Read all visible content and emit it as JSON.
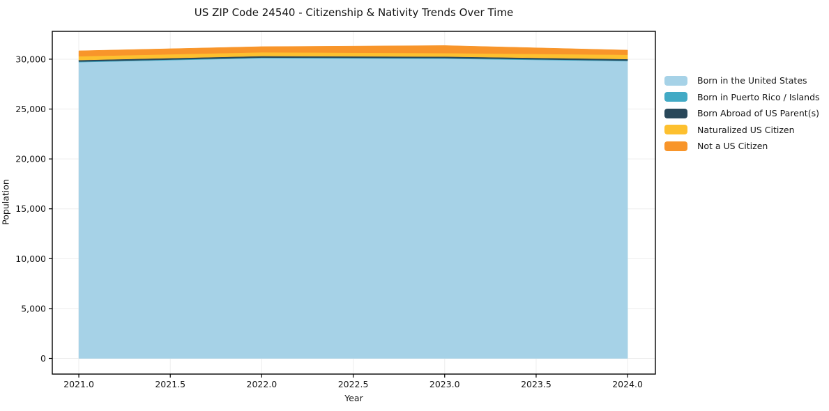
{
  "title": "US ZIP Code 24540 - Citizenship & Nativity Trends Over Time",
  "chart_data": {
    "type": "area",
    "stacked": true,
    "title": "US ZIP Code 24540 - Citizenship & Nativity Trends Over Time",
    "xlabel": "Year",
    "ylabel": "Population",
    "x": [
      2021,
      2022,
      2023,
      2024
    ],
    "series": [
      {
        "name": "Born in the United States",
        "color": "#a6d2e7",
        "values": [
          29700,
          30100,
          30050,
          29800
        ]
      },
      {
        "name": "Born in Puerto Rico / Islands",
        "color": "#42aac5",
        "values": [
          60,
          60,
          60,
          60
        ]
      },
      {
        "name": "Born Abroad of US Parent(s)",
        "color": "#29485a",
        "values": [
          150,
          150,
          150,
          150
        ]
      },
      {
        "name": "Naturalized US Citizen",
        "color": "#fdc02f",
        "values": [
          380,
          380,
          350,
          430
        ]
      },
      {
        "name": "Not a US Citizen",
        "color": "#f8952a",
        "values": [
          550,
          570,
          760,
          470
        ]
      }
    ],
    "totals": [
      30840,
      31260,
      31360,
      30910
    ],
    "xlim": [
      2020.855,
      2024.152
    ],
    "ylim": [
      -1570,
      32790
    ],
    "xticks": {
      "values": [
        2021.0,
        2021.5,
        2022.0,
        2022.5,
        2023.0,
        2023.5,
        2024.0
      ],
      "labels": [
        "2021.0",
        "2021.5",
        "2022.0",
        "2022.5",
        "2023.0",
        "2023.5",
        "2024.0"
      ]
    },
    "yticks": {
      "values": [
        0,
        5000,
        10000,
        15000,
        20000,
        25000,
        30000
      ],
      "labels": [
        "0",
        "5,000",
        "10,000",
        "15,000",
        "20,000",
        "25,000",
        "30,000"
      ]
    },
    "grid": true,
    "legend_position": "right-outside",
    "colors": {
      "axis": "#000000",
      "gridline": "#ededed",
      "text": "#161616",
      "background": "#ffffff"
    }
  }
}
